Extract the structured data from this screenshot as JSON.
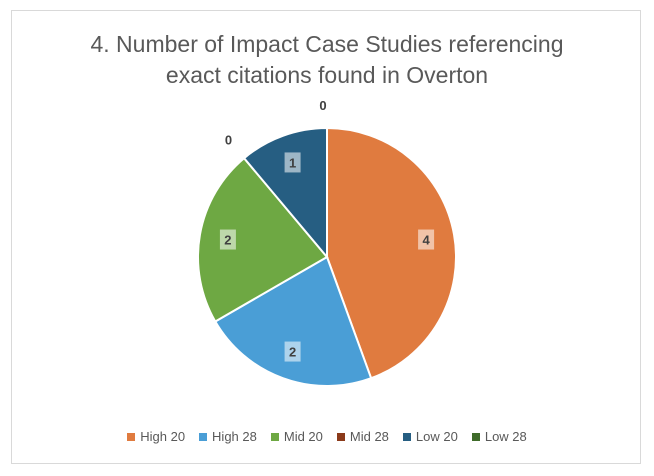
{
  "chart_data": {
    "type": "pie",
    "title": [
      "4. Number of Impact Case Studies referencing",
      "exact citations found in Overton"
    ],
    "slices": [
      {
        "name": "High 20",
        "value": 4,
        "color": "#E07B3F",
        "label": "4"
      },
      {
        "name": "High 28",
        "value": 2,
        "color": "#4A9ED6",
        "label": "2"
      },
      {
        "name": "Mid 20",
        "value": 2,
        "color": "#6EA843",
        "label": "2"
      },
      {
        "name": "Mid 28",
        "value": 0,
        "color": "#8B3A1A",
        "label": "0"
      },
      {
        "name": "Low 20",
        "value": 1,
        "color": "#265E82",
        "label": "1"
      },
      {
        "name": "Low 28",
        "value": 0,
        "color": "#3F6B2A",
        "label": "0"
      }
    ],
    "legend_position": "bottom"
  }
}
